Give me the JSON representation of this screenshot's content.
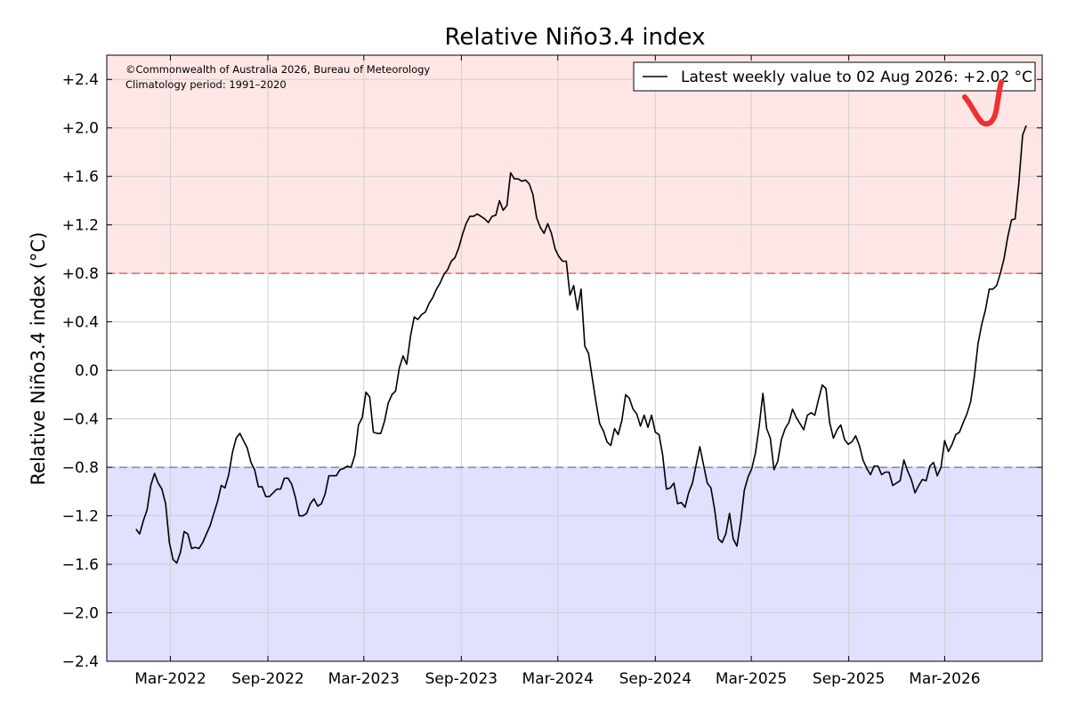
{
  "chart_data": {
    "type": "line",
    "title": "Relative Niño3.4 index",
    "xlabel": "",
    "ylabel": "Relative Niño3.4 index (°C)",
    "ylim": [
      -2.4,
      2.6
    ],
    "yticks": [
      -2.4,
      -2.0,
      -1.6,
      -1.2,
      -0.8,
      -0.4,
      0.0,
      0.4,
      0.8,
      1.2,
      1.6,
      2.0,
      2.4
    ],
    "ytick_labels": [
      "−2.4",
      "−2.0",
      "−1.6",
      "−1.2",
      "−0.8",
      "−0.4",
      "0.0",
      "+0.4",
      "+0.8",
      "+1.2",
      "+1.6",
      "+2.0",
      "+2.4"
    ],
    "xlim": [
      "2021-11-01",
      "2026-09-01"
    ],
    "xticks": [
      "2022-03-01",
      "2022-09-01",
      "2023-03-01",
      "2023-09-01",
      "2024-03-01",
      "2024-09-01",
      "2025-03-01",
      "2025-09-01",
      "2026-03-01"
    ],
    "xtick_labels": [
      "Mar-2022",
      "Sep-2022",
      "Mar-2023",
      "Sep-2023",
      "Mar-2024",
      "Sep-2024",
      "Mar-2025",
      "Sep-2025",
      "Mar-2026"
    ],
    "grid": true,
    "thresholds": {
      "el_nino": 0.8,
      "la_nina": -0.8,
      "el_nino_color": "#ffe6e6",
      "la_nina_color": "#e0e0ff",
      "el_nino_line_color": "#e05050",
      "la_nina_line_color": "#6060a0"
    },
    "credit_lines": [
      "©Commonwealth of Australia 2026, Bureau of Meteorology",
      "Climatology period: 1991–2020"
    ],
    "legend": {
      "label": "Latest weekly value to 02 Aug 2026: +2.02 °C",
      "position": "top-right"
    },
    "series": [
      {
        "color": "#000000",
        "points": [
          [
            "2021-12-26",
            -1.31
          ],
          [
            "2022-01-02",
            -1.35
          ],
          [
            "2022-01-09",
            -1.24
          ],
          [
            "2022-01-16",
            -1.15
          ],
          [
            "2022-01-23",
            -0.95
          ],
          [
            "2022-01-30",
            -0.85
          ],
          [
            "2022-02-06",
            -0.93
          ],
          [
            "2022-02-13",
            -0.98
          ],
          [
            "2022-02-20",
            -1.1
          ],
          [
            "2022-02-27",
            -1.42
          ],
          [
            "2022-03-06",
            -1.56
          ],
          [
            "2022-03-13",
            -1.59
          ],
          [
            "2022-03-20",
            -1.5
          ],
          [
            "2022-03-27",
            -1.33
          ],
          [
            "2022-04-03",
            -1.35
          ],
          [
            "2022-04-10",
            -1.47
          ],
          [
            "2022-04-17",
            -1.46
          ],
          [
            "2022-04-24",
            -1.47
          ],
          [
            "2022-05-01",
            -1.42
          ],
          [
            "2022-05-08",
            -1.35
          ],
          [
            "2022-05-15",
            -1.28
          ],
          [
            "2022-05-22",
            -1.18
          ],
          [
            "2022-05-29",
            -1.08
          ],
          [
            "2022-06-05",
            -0.95
          ],
          [
            "2022-06-12",
            -0.97
          ],
          [
            "2022-06-19",
            -0.86
          ],
          [
            "2022-06-26",
            -0.68
          ],
          [
            "2022-07-03",
            -0.56
          ],
          [
            "2022-07-10",
            -0.52
          ],
          [
            "2022-07-17",
            -0.58
          ],
          [
            "2022-07-24",
            -0.64
          ],
          [
            "2022-07-31",
            -0.76
          ],
          [
            "2022-08-07",
            -0.82
          ],
          [
            "2022-08-14",
            -0.96
          ],
          [
            "2022-08-21",
            -0.96
          ],
          [
            "2022-08-28",
            -1.04
          ],
          [
            "2022-09-04",
            -1.04
          ],
          [
            "2022-09-11",
            -1.01
          ],
          [
            "2022-09-18",
            -0.98
          ],
          [
            "2022-09-25",
            -0.98
          ],
          [
            "2022-10-02",
            -0.89
          ],
          [
            "2022-10-09",
            -0.89
          ],
          [
            "2022-10-16",
            -0.94
          ],
          [
            "2022-10-23",
            -1.05
          ],
          [
            "2022-10-30",
            -1.2
          ],
          [
            "2022-11-06",
            -1.2
          ],
          [
            "2022-11-13",
            -1.18
          ],
          [
            "2022-11-20",
            -1.1
          ],
          [
            "2022-11-27",
            -1.06
          ],
          [
            "2022-12-04",
            -1.12
          ],
          [
            "2022-12-11",
            -1.1
          ],
          [
            "2022-12-18",
            -1.02
          ],
          [
            "2022-12-25",
            -0.87
          ],
          [
            "2023-01-01",
            -0.87
          ],
          [
            "2023-01-08",
            -0.87
          ],
          [
            "2023-01-15",
            -0.82
          ],
          [
            "2023-01-22",
            -0.81
          ],
          [
            "2023-01-29",
            -0.79
          ],
          [
            "2023-02-05",
            -0.8
          ],
          [
            "2023-02-12",
            -0.7
          ],
          [
            "2023-02-19",
            -0.45
          ],
          [
            "2023-02-26",
            -0.39
          ],
          [
            "2023-03-05",
            -0.18
          ],
          [
            "2023-03-12",
            -0.22
          ],
          [
            "2023-03-19",
            -0.51
          ],
          [
            "2023-03-26",
            -0.52
          ],
          [
            "2023-04-02",
            -0.52
          ],
          [
            "2023-04-09",
            -0.42
          ],
          [
            "2023-04-16",
            -0.27
          ],
          [
            "2023-04-23",
            -0.2
          ],
          [
            "2023-04-30",
            -0.17
          ],
          [
            "2023-05-07",
            0.02
          ],
          [
            "2023-05-14",
            0.12
          ],
          [
            "2023-05-21",
            0.05
          ],
          [
            "2023-05-28",
            0.28
          ],
          [
            "2023-06-04",
            0.44
          ],
          [
            "2023-06-11",
            0.42
          ],
          [
            "2023-06-18",
            0.46
          ],
          [
            "2023-06-25",
            0.48
          ],
          [
            "2023-07-02",
            0.55
          ],
          [
            "2023-07-09",
            0.6
          ],
          [
            "2023-07-16",
            0.67
          ],
          [
            "2023-07-23",
            0.72
          ],
          [
            "2023-07-30",
            0.79
          ],
          [
            "2023-08-06",
            0.83
          ],
          [
            "2023-08-13",
            0.9
          ],
          [
            "2023-08-20",
            0.93
          ],
          [
            "2023-08-27",
            1.01
          ],
          [
            "2023-09-03",
            1.12
          ],
          [
            "2023-09-10",
            1.21
          ],
          [
            "2023-09-17",
            1.27
          ],
          [
            "2023-09-24",
            1.27
          ],
          [
            "2023-10-01",
            1.29
          ],
          [
            "2023-10-08",
            1.27
          ],
          [
            "2023-10-15",
            1.25
          ],
          [
            "2023-10-22",
            1.22
          ],
          [
            "2023-10-29",
            1.27
          ],
          [
            "2023-11-05",
            1.28
          ],
          [
            "2023-11-12",
            1.4
          ],
          [
            "2023-11-19",
            1.32
          ],
          [
            "2023-11-26",
            1.36
          ],
          [
            "2023-12-03",
            1.63
          ],
          [
            "2023-12-10",
            1.58
          ],
          [
            "2023-12-17",
            1.58
          ],
          [
            "2023-12-24",
            1.56
          ],
          [
            "2023-12-31",
            1.57
          ],
          [
            "2024-01-07",
            1.54
          ],
          [
            "2024-01-14",
            1.45
          ],
          [
            "2024-01-21",
            1.26
          ],
          [
            "2024-01-28",
            1.18
          ],
          [
            "2024-02-04",
            1.13
          ],
          [
            "2024-02-11",
            1.21
          ],
          [
            "2024-02-18",
            1.13
          ],
          [
            "2024-02-25",
            1.0
          ],
          [
            "2024-03-03",
            0.94
          ],
          [
            "2024-03-10",
            0.9
          ],
          [
            "2024-03-17",
            0.9
          ],
          [
            "2024-03-24",
            0.62
          ],
          [
            "2024-03-31",
            0.7
          ],
          [
            "2024-04-07",
            0.5
          ],
          [
            "2024-04-14",
            0.67
          ],
          [
            "2024-04-21",
            0.2
          ],
          [
            "2024-04-28",
            0.14
          ],
          [
            "2024-05-05",
            -0.06
          ],
          [
            "2024-05-12",
            -0.26
          ],
          [
            "2024-05-19",
            -0.44
          ],
          [
            "2024-05-26",
            -0.5
          ],
          [
            "2024-06-02",
            -0.59
          ],
          [
            "2024-06-09",
            -0.62
          ],
          [
            "2024-06-16",
            -0.48
          ],
          [
            "2024-06-23",
            -0.53
          ],
          [
            "2024-06-30",
            -0.41
          ],
          [
            "2024-07-07",
            -0.2
          ],
          [
            "2024-07-14",
            -0.23
          ],
          [
            "2024-07-21",
            -0.32
          ],
          [
            "2024-07-28",
            -0.36
          ],
          [
            "2024-08-04",
            -0.46
          ],
          [
            "2024-08-11",
            -0.37
          ],
          [
            "2024-08-18",
            -0.47
          ],
          [
            "2024-08-25",
            -0.37
          ],
          [
            "2024-09-01",
            -0.51
          ],
          [
            "2024-09-08",
            -0.53
          ],
          [
            "2024-09-15",
            -0.7
          ],
          [
            "2024-09-22",
            -0.98
          ],
          [
            "2024-09-29",
            -0.97
          ],
          [
            "2024-10-06",
            -0.93
          ],
          [
            "2024-10-13",
            -1.1
          ],
          [
            "2024-10-20",
            -1.09
          ],
          [
            "2024-10-27",
            -1.13
          ],
          [
            "2024-11-03",
            -1.01
          ],
          [
            "2024-11-10",
            -0.93
          ],
          [
            "2024-11-17",
            -0.78
          ],
          [
            "2024-11-24",
            -0.63
          ],
          [
            "2024-12-01",
            -0.78
          ],
          [
            "2024-12-08",
            -0.93
          ],
          [
            "2024-12-15",
            -0.97
          ],
          [
            "2024-12-22",
            -1.15
          ],
          [
            "2024-12-29",
            -1.39
          ],
          [
            "2025-01-05",
            -1.42
          ],
          [
            "2025-01-12",
            -1.35
          ],
          [
            "2025-01-19",
            -1.18
          ],
          [
            "2025-01-26",
            -1.39
          ],
          [
            "2025-02-02",
            -1.45
          ],
          [
            "2025-02-09",
            -1.25
          ],
          [
            "2025-02-16",
            -0.99
          ],
          [
            "2025-02-23",
            -0.88
          ],
          [
            "2025-03-02",
            -0.81
          ],
          [
            "2025-03-09",
            -0.68
          ],
          [
            "2025-03-16",
            -0.46
          ],
          [
            "2025-03-23",
            -0.19
          ],
          [
            "2025-03-30",
            -0.48
          ],
          [
            "2025-04-06",
            -0.56
          ],
          [
            "2025-04-13",
            -0.82
          ],
          [
            "2025-04-20",
            -0.75
          ],
          [
            "2025-04-27",
            -0.57
          ],
          [
            "2025-05-04",
            -0.48
          ],
          [
            "2025-05-11",
            -0.43
          ],
          [
            "2025-05-18",
            -0.32
          ],
          [
            "2025-05-25",
            -0.39
          ],
          [
            "2025-06-01",
            -0.44
          ],
          [
            "2025-06-08",
            -0.49
          ],
          [
            "2025-06-15",
            -0.37
          ],
          [
            "2025-06-22",
            -0.35
          ],
          [
            "2025-06-29",
            -0.37
          ],
          [
            "2025-07-06",
            -0.24
          ],
          [
            "2025-07-13",
            -0.12
          ],
          [
            "2025-07-20",
            -0.15
          ],
          [
            "2025-07-27",
            -0.43
          ],
          [
            "2025-08-03",
            -0.56
          ],
          [
            "2025-08-10",
            -0.49
          ],
          [
            "2025-08-17",
            -0.45
          ],
          [
            "2025-08-24",
            -0.57
          ],
          [
            "2025-08-31",
            -0.61
          ],
          [
            "2025-09-07",
            -0.59
          ],
          [
            "2025-09-14",
            -0.54
          ],
          [
            "2025-09-21",
            -0.62
          ],
          [
            "2025-09-28",
            -0.74
          ],
          [
            "2025-10-05",
            -0.81
          ],
          [
            "2025-10-12",
            -0.86
          ],
          [
            "2025-10-19",
            -0.79
          ],
          [
            "2025-10-26",
            -0.79
          ],
          [
            "2025-11-02",
            -0.86
          ],
          [
            "2025-11-09",
            -0.84
          ],
          [
            "2025-11-16",
            -0.84
          ],
          [
            "2025-11-23",
            -0.95
          ],
          [
            "2025-11-30",
            -0.93
          ],
          [
            "2025-12-07",
            -0.91
          ],
          [
            "2025-12-14",
            -0.74
          ],
          [
            "2025-12-21",
            -0.83
          ],
          [
            "2025-12-28",
            -0.9
          ],
          [
            "2026-01-04",
            -1.01
          ],
          [
            "2026-01-11",
            -0.95
          ],
          [
            "2026-01-18",
            -0.9
          ],
          [
            "2026-01-25",
            -0.91
          ],
          [
            "2026-02-01",
            -0.79
          ],
          [
            "2026-02-08",
            -0.76
          ],
          [
            "2026-02-15",
            -0.87
          ],
          [
            "2026-02-22",
            -0.8
          ],
          [
            "2026-03-01",
            -0.58
          ],
          [
            "2026-03-08",
            -0.67
          ],
          [
            "2026-03-15",
            -0.61
          ],
          [
            "2026-03-22",
            -0.53
          ],
          [
            "2026-03-29",
            -0.51
          ],
          [
            "2026-04-05",
            -0.43
          ],
          [
            "2026-04-12",
            -0.36
          ],
          [
            "2026-04-19",
            -0.26
          ],
          [
            "2026-04-26",
            -0.05
          ],
          [
            "2026-05-03",
            0.22
          ],
          [
            "2026-05-10",
            0.38
          ],
          [
            "2026-05-17",
            0.5
          ],
          [
            "2026-05-24",
            0.67
          ],
          [
            "2026-05-31",
            0.67
          ],
          [
            "2026-06-07",
            0.7
          ],
          [
            "2026-06-14",
            0.8
          ],
          [
            "2026-06-21",
            0.92
          ],
          [
            "2026-06-28",
            1.1
          ],
          [
            "2026-07-05",
            1.24
          ],
          [
            "2026-07-12",
            1.25
          ],
          [
            "2026-07-19",
            1.55
          ],
          [
            "2026-07-26",
            1.94
          ],
          [
            "2026-08-02",
            2.02
          ]
        ]
      }
    ]
  }
}
